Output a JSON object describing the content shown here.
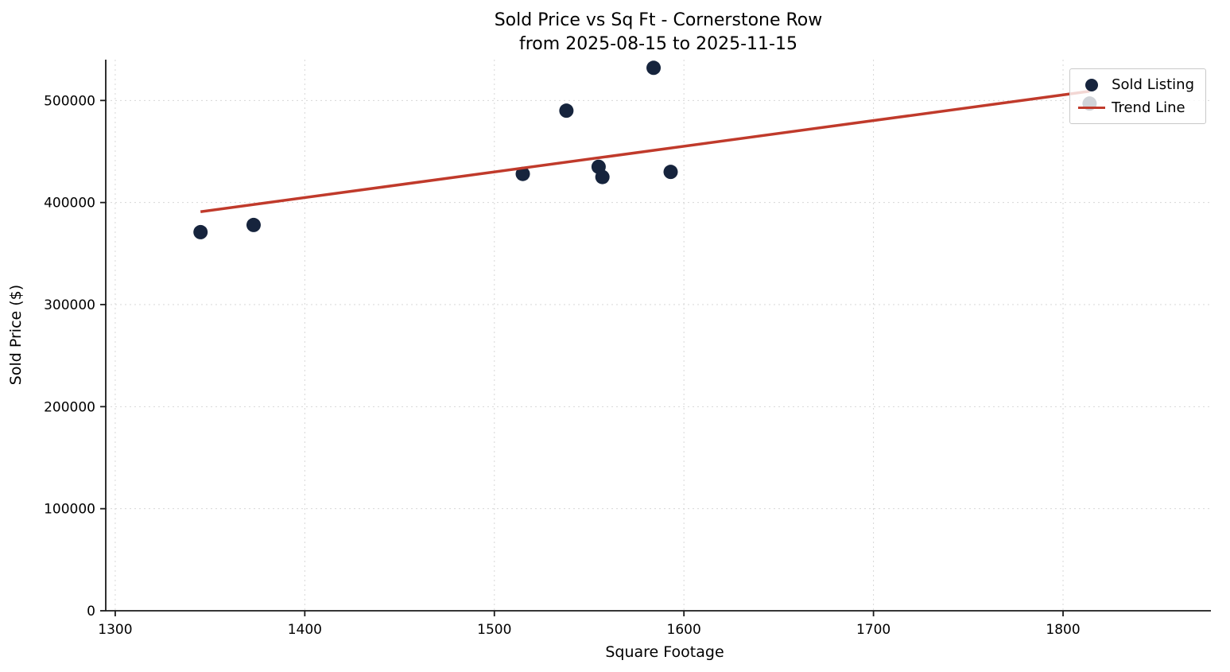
{
  "chart_data": {
    "type": "scatter",
    "title": "Sold Price vs Sq Ft - Cornerstone Row",
    "subtitle": "from 2025-08-15 to 2025-11-15",
    "xlabel": "Square Footage",
    "ylabel": "Sold Price ($)",
    "xlim": [
      1295,
      1878
    ],
    "ylim": [
      0,
      540000
    ],
    "xticks": [
      1300,
      1400,
      1500,
      1600,
      1700,
      1800
    ],
    "yticks": [
      0,
      100000,
      200000,
      300000,
      400000,
      500000
    ],
    "grid": true,
    "grid_color": "#d7d7d7",
    "axis_color": "#1a1a1a",
    "legend_position": "upper right",
    "series": [
      {
        "name": "Sold Listing",
        "type": "scatter",
        "marker": "circle",
        "color": "#16243d",
        "points": [
          [
            1345,
            371000
          ],
          [
            1373,
            378000
          ],
          [
            1515,
            428000
          ],
          [
            1538,
            490000
          ],
          [
            1555,
            435000
          ],
          [
            1557,
            425000
          ],
          [
            1584,
            532000
          ],
          [
            1593,
            430000
          ],
          [
            1814,
            497000
          ]
        ]
      },
      {
        "name": "Trend Line",
        "type": "line",
        "color": "#c03a2b",
        "points": [
          [
            1345,
            391000
          ],
          [
            1814,
            509000
          ]
        ]
      }
    ]
  }
}
